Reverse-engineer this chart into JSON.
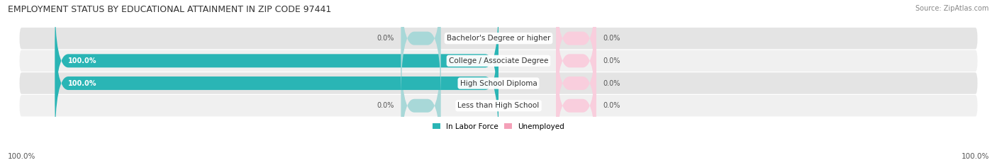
{
  "title": "EMPLOYMENT STATUS BY EDUCATIONAL ATTAINMENT IN ZIP CODE 97441",
  "source": "Source: ZipAtlas.com",
  "categories": [
    "Less than High School",
    "High School Diploma",
    "College / Associate Degree",
    "Bachelor's Degree or higher"
  ],
  "in_labor_force": [
    0.0,
    100.0,
    100.0,
    0.0
  ],
  "unemployed": [
    0.0,
    0.0,
    0.0,
    0.0
  ],
  "labor_force_color": "#2ab5b5",
  "labor_force_color_light": "#a8d8d8",
  "unemployed_color": "#f4a0b8",
  "unemployed_color_light": "#f9cedd",
  "row_bg_colors": [
    "#f0f0f0",
    "#e4e4e4"
  ],
  "title_fontsize": 9,
  "source_fontsize": 7,
  "label_fontsize": 7.5,
  "legend_fontsize": 7.5,
  "value_fontsize": 7,
  "axis_label_left": "100.0%",
  "axis_label_right": "100.0%",
  "background_color": "#ffffff"
}
